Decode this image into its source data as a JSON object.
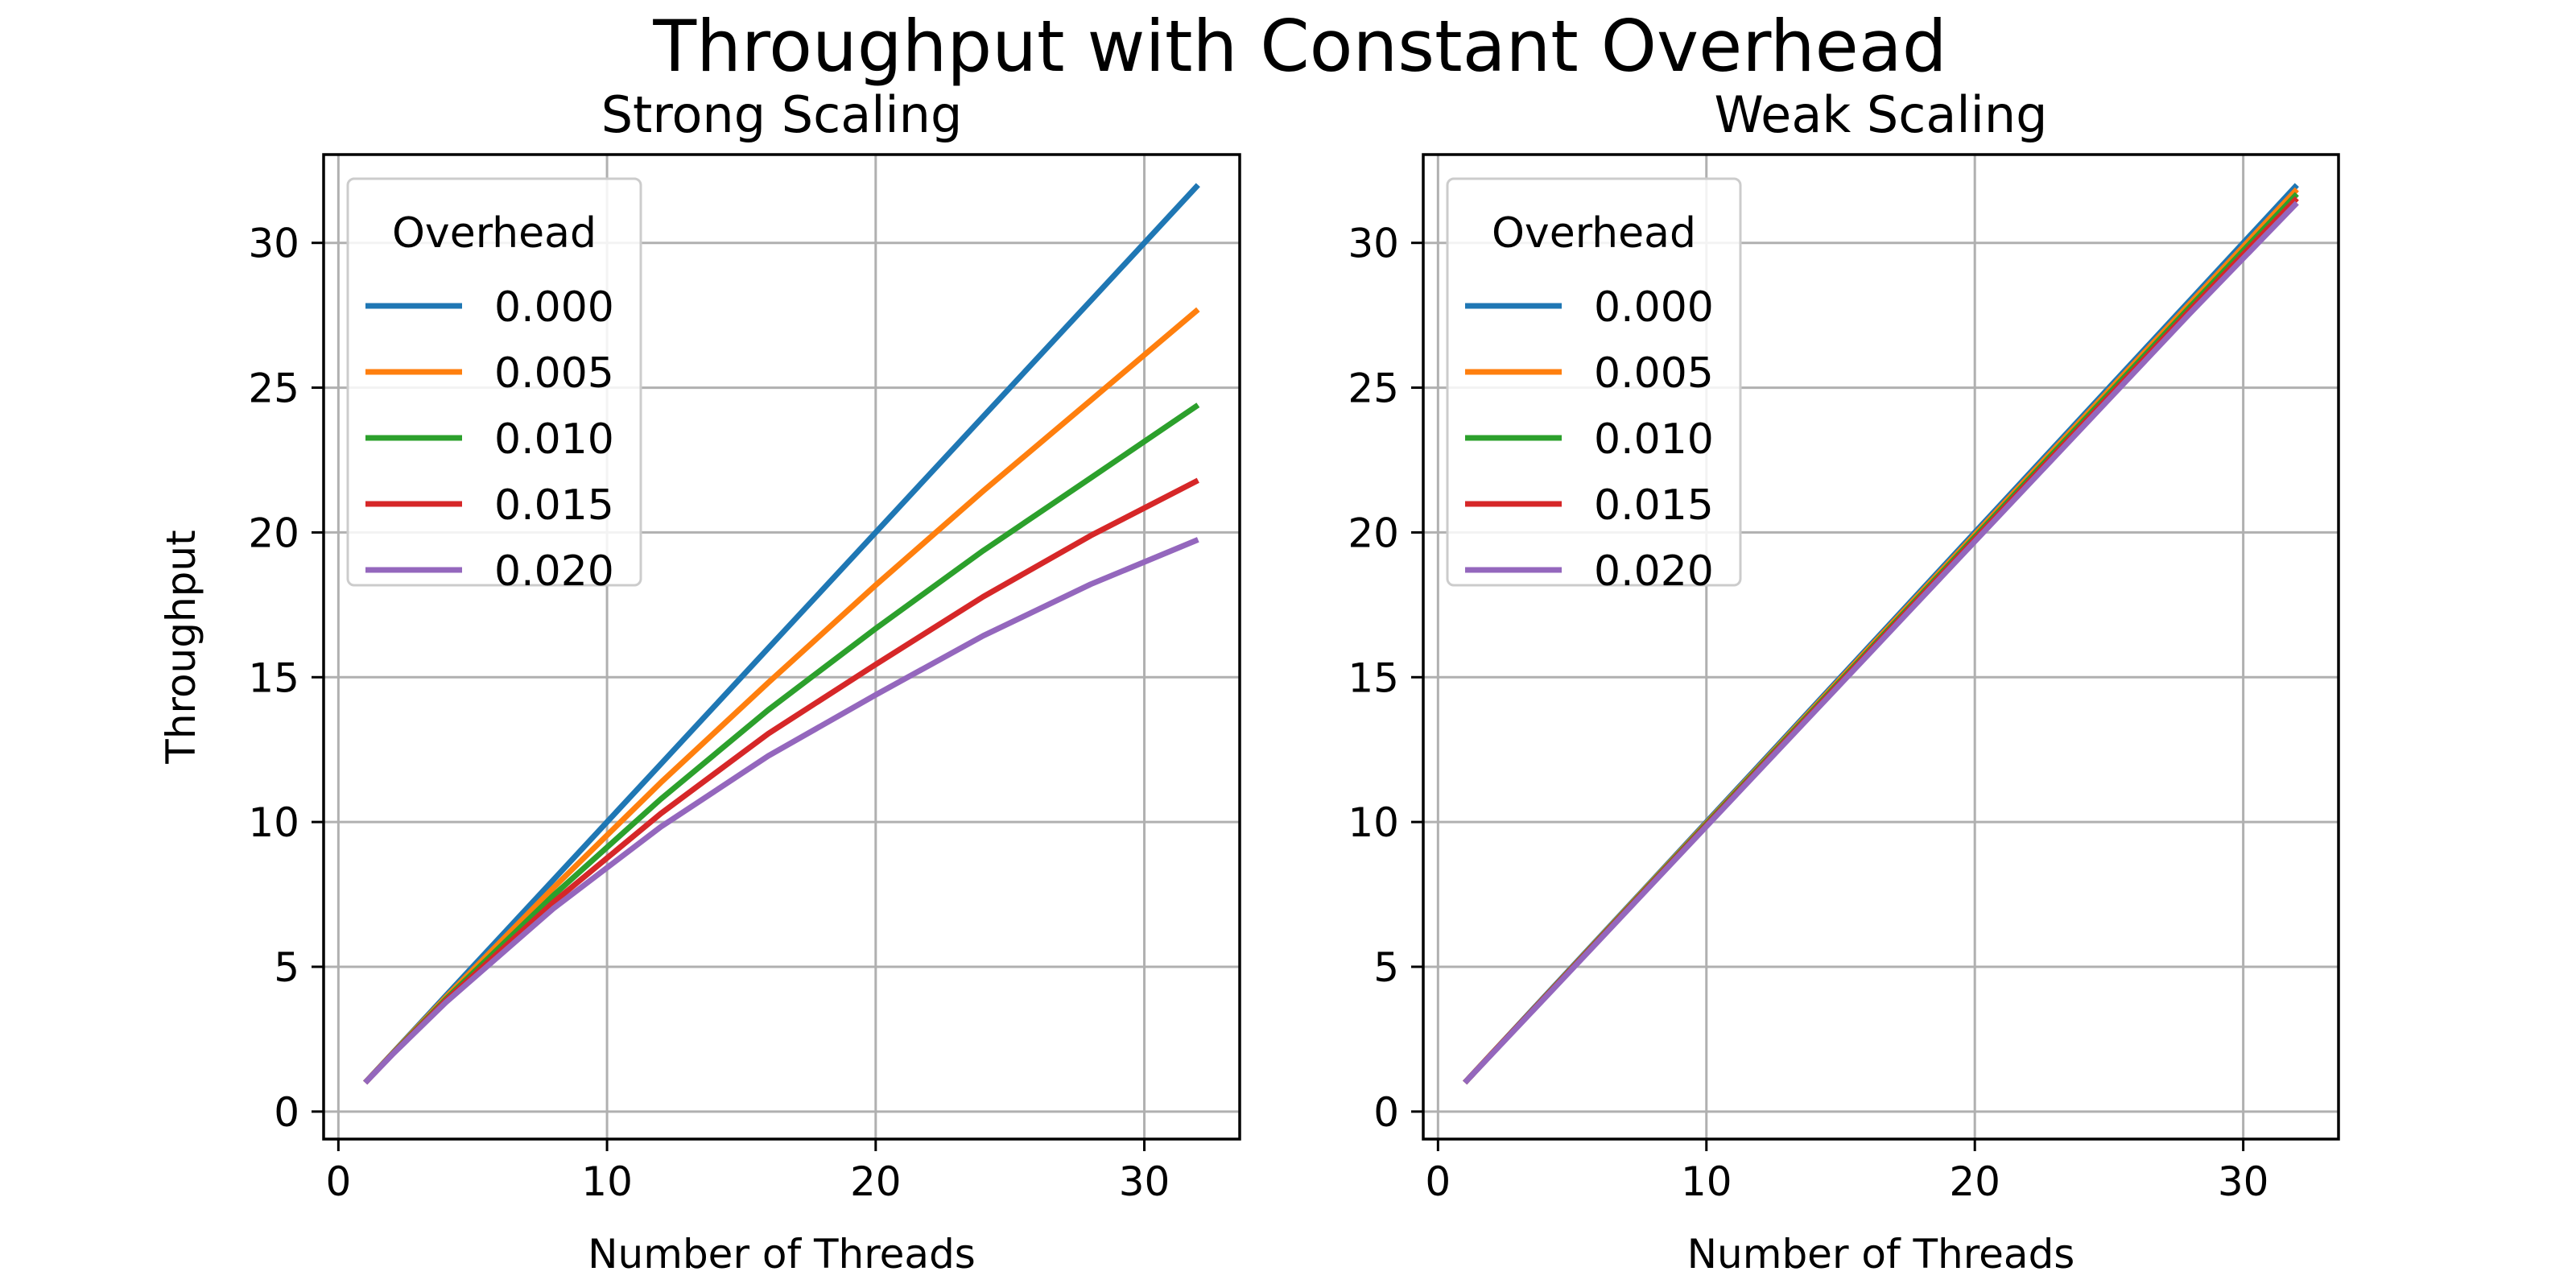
{
  "suptitle": "Throughput with Constant Overhead",
  "legend": {
    "title": "Overhead",
    "placement": "upper left",
    "entries": [
      "0.000",
      "0.005",
      "0.010",
      "0.015",
      "0.020"
    ]
  },
  "colors": [
    "#1f77b4",
    "#ff7f0e",
    "#2ca02c",
    "#d62728",
    "#9467bd"
  ],
  "chart_data": [
    {
      "type": "line",
      "title": "Strong Scaling",
      "xlabel": "Number of Threads",
      "ylabel": "Throughput",
      "xlim": [
        -0.55,
        33.55
      ],
      "ylim": [
        -0.95,
        33.05
      ],
      "xticks": [
        0,
        10,
        20,
        30
      ],
      "yticks": [
        0,
        5,
        10,
        15,
        20,
        25,
        30
      ],
      "grid": true,
      "legend_title": "Overhead",
      "x": [
        1,
        2,
        4,
        8,
        12,
        16,
        20,
        24,
        28,
        32
      ],
      "series": [
        {
          "name": "0.000",
          "values": [
            1,
            2,
            4,
            8,
            12,
            16,
            20,
            24,
            28,
            32
          ]
        },
        {
          "name": "0.005",
          "values": [
            1,
            1.99,
            3.94,
            7.72,
            11.36,
            14.81,
            18.18,
            21.43,
            24.56,
            27.7
          ]
        },
        {
          "name": "0.010",
          "values": [
            1,
            1.98,
            3.88,
            7.46,
            10.79,
            13.87,
            16.68,
            19.37,
            21.88,
            24.4
          ]
        },
        {
          "name": "0.015",
          "values": [
            1,
            1.97,
            3.83,
            7.22,
            10.29,
            13.05,
            15.44,
            17.78,
            19.89,
            21.8
          ]
        },
        {
          "name": "0.020",
          "values": [
            1,
            1.96,
            3.77,
            7.01,
            9.83,
            12.28,
            14.39,
            16.43,
            18.21,
            19.75
          ]
        }
      ]
    },
    {
      "type": "line",
      "title": "Weak Scaling",
      "xlabel": "Number of Threads",
      "ylabel": "",
      "xlim": [
        -0.55,
        33.55
      ],
      "ylim": [
        -0.95,
        33.05
      ],
      "xticks": [
        0,
        10,
        20,
        30
      ],
      "yticks": [
        0,
        5,
        10,
        15,
        20,
        25,
        30
      ],
      "grid": true,
      "legend_title": "Overhead",
      "x": [
        1,
        2,
        4,
        8,
        12,
        16,
        20,
        24,
        28,
        32
      ],
      "series": [
        {
          "name": "0.000",
          "values": [
            1,
            2,
            4,
            8,
            12,
            16,
            20,
            24,
            28,
            32
          ]
        },
        {
          "name": "0.005",
          "values": [
            1,
            2.0,
            3.98,
            7.97,
            11.95,
            15.94,
            19.92,
            23.91,
            27.89,
            31.85
          ]
        },
        {
          "name": "0.010",
          "values": [
            1,
            1.99,
            3.97,
            7.94,
            11.91,
            15.87,
            19.84,
            23.81,
            27.77,
            31.69
          ]
        },
        {
          "name": "0.015",
          "values": [
            1,
            1.99,
            3.96,
            7.91,
            11.86,
            15.81,
            19.76,
            23.71,
            27.66,
            31.54
          ]
        },
        {
          "name": "0.020",
          "values": [
            1,
            1.98,
            3.94,
            7.88,
            11.82,
            15.75,
            19.69,
            23.62,
            27.55,
            31.38
          ]
        }
      ]
    }
  ]
}
